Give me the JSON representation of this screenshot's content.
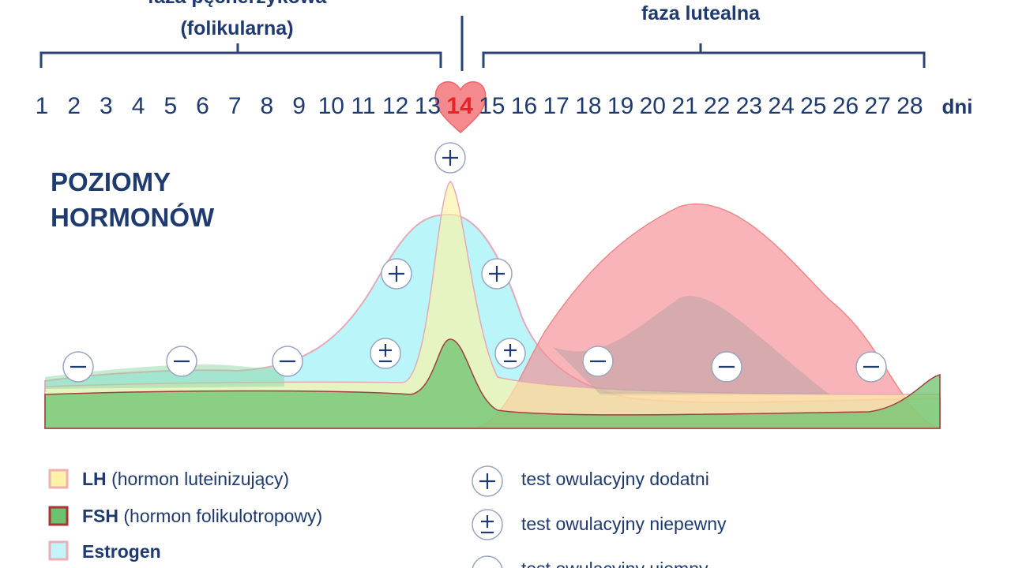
{
  "header": {
    "follicular_title": "faza pęcherzykowa",
    "follicular_subtitle": "(folikularna)",
    "luteal_title": "faza lutealna"
  },
  "days": {
    "labels": [
      1,
      2,
      3,
      4,
      5,
      6,
      7,
      8,
      9,
      10,
      11,
      12,
      13,
      14,
      15,
      16,
      17,
      18,
      19,
      20,
      21,
      22,
      23,
      24,
      25,
      26,
      27,
      28
    ],
    "unit": "dni"
  },
  "chart": {
    "title_line1": "POZIOMY",
    "title_line2": "HORMONÓW"
  },
  "legend": [
    {
      "name": "LH",
      "description": "(hormon luteinizujący)"
    },
    {
      "name": "FSH",
      "description": "(hormon folikulotropowy)"
    },
    {
      "name": "Estrogen"
    }
  ],
  "tests": [
    "test owulacyjny dodatni",
    "test owulacyjny niepewny",
    "test owulacyjny ujemny"
  ]
}
